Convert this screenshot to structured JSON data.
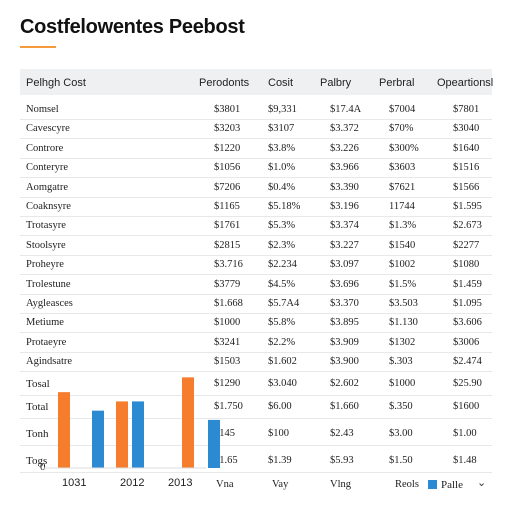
{
  "page": {
    "title": "Costfelowentes Peebost"
  },
  "table": {
    "headers": [
      "Pelhgh Cost",
      "Perodonts",
      "Cosit",
      "Palbry",
      "Perbral",
      "Opeartionsl"
    ],
    "rows": [
      [
        "Nomsel",
        "$3801",
        "$9,331",
        "$17.4A",
        "$7004",
        "$7801"
      ],
      [
        "Cavescyre",
        "$3203",
        "$3107",
        "$3.372",
        "$70%",
        "$3040"
      ],
      [
        "Controre",
        "$1220",
        "$3.8%",
        "$3.226",
        "$300%",
        "$1640"
      ],
      [
        "Conteryre",
        "$1056",
        "$1.0%",
        "$3.966",
        "$3603",
        "$1516"
      ],
      [
        "Aomgatre",
        "$7206",
        "$0.4%",
        "$3.390",
        "$7621",
        "$1566"
      ],
      [
        "Coaknsyre",
        "$1165",
        "$5.18%",
        "$3.196",
        "11744",
        "$1.595"
      ],
      [
        "Trotasyre",
        "$1761",
        "$5.3%",
        "$3.374",
        "$1.3%",
        "$2.673"
      ],
      [
        "Stoolsyre",
        "$2815",
        "$2.3%",
        "$3.227",
        "$1540",
        "$2277"
      ],
      [
        "Proheyre",
        "$3.716",
        "$2.234",
        "$3.097",
        "$1002",
        "$1080"
      ],
      [
        "Trolestune",
        "$3779",
        "$4.5%",
        "$3.696",
        "$1.5%",
        "$1.459"
      ],
      [
        "Aygleasces",
        "$1.668",
        "$5.7A4",
        "$3.370",
        "$3.503",
        "$1.095"
      ],
      [
        "Metiume",
        "$1000",
        "$5.8%",
        "$3.895",
        "$1.130",
        "$3.606"
      ],
      [
        "Protaeyre",
        "$3241",
        "$2.2%",
        "$3.909",
        "$1302",
        "$3006"
      ],
      [
        "Agindsatre",
        "$1503",
        "$1.602",
        "$3.900",
        "$.303",
        "$2.474"
      ]
    ],
    "totals": [
      [
        "Tosal",
        "$1290",
        "$3.040",
        "$2.602",
        "$1000",
        "$25.90"
      ],
      [
        "Total",
        "$1.750",
        "$6.00",
        "$1.660",
        "$.350",
        "$1600"
      ],
      [
        "Tonh",
        "$145",
        "$100",
        "$2.43",
        "$3.00",
        "$1.00"
      ],
      [
        "Togs",
        "$1.65",
        "$1.39",
        "$5.93",
        "$1.50",
        "$1.48"
      ]
    ],
    "footer": [
      "Vna",
      "Vay",
      "Vlng",
      "Reols"
    ]
  },
  "chart_data": {
    "type": "bar",
    "categories": [
      "1031",
      "2012",
      "2013"
    ],
    "series": [
      {
        "values": [
          4.1,
          3.6,
          4.9
        ]
      },
      {
        "values": [
          3.1,
          3.6,
          2.6
        ]
      }
    ],
    "ytick_zero": "0",
    "colors": [
      "#f57d2d",
      "#2b8ad2"
    ]
  },
  "legend": {
    "label": "Palle",
    "icon": "chevron-down-icon"
  }
}
